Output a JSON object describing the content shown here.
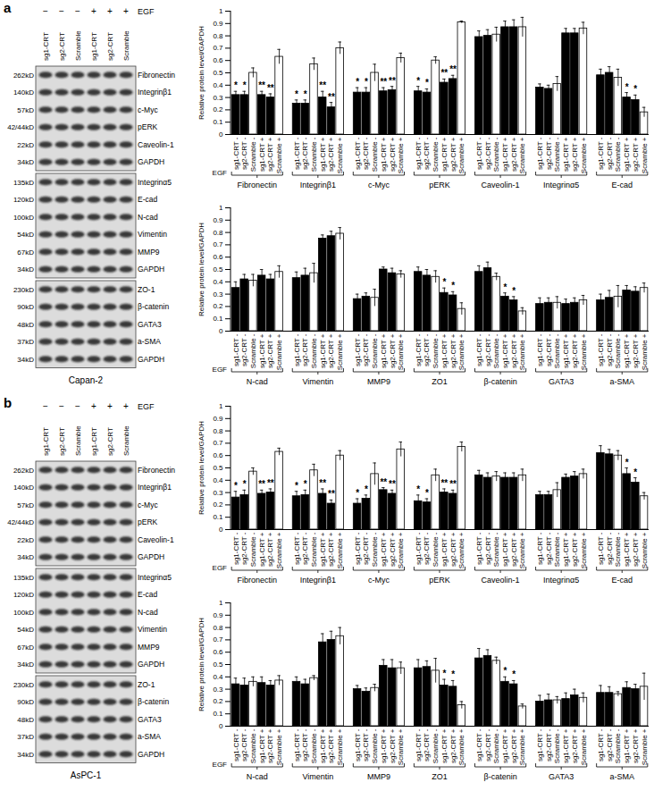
{
  "blots": [
    {
      "panel": "a",
      "cell_line": "Capan-2",
      "treatment": "EGF",
      "lanes": [
        {
          "label": "sg1-CRT",
          "sign": "−"
        },
        {
          "label": "sg2-CRT",
          "sign": "−"
        },
        {
          "label": "Scramble",
          "sign": "−"
        },
        {
          "label": "sg1-CRT",
          "sign": "+"
        },
        {
          "label": "sg2-CRT",
          "sign": "+"
        },
        {
          "label": "Scramble",
          "sign": "+"
        }
      ],
      "rows": [
        {
          "size": "262kD",
          "protein": "Fibronectin"
        },
        {
          "size": "140kD",
          "protein": "Integrinβ1"
        },
        {
          "size": "57kD",
          "protein": "c-Myc"
        },
        {
          "size": "42/44kD",
          "protein": "pERK"
        },
        {
          "size": "22kD",
          "protein": "Caveolin-1"
        },
        {
          "size": "34kD",
          "protein": "GAPDH"
        },
        {
          "size": "135kD",
          "protein": "Integrinα5"
        },
        {
          "size": "120kD",
          "protein": "E-cad"
        },
        {
          "size": "100kD",
          "protein": "N-cad"
        },
        {
          "size": "54kD",
          "protein": "Vimentin"
        },
        {
          "size": "67kD",
          "protein": "MMP9"
        },
        {
          "size": "34kD",
          "protein": "GAPDH"
        },
        {
          "size": "230kD",
          "protein": "ZO-1"
        },
        {
          "size": "90kD",
          "protein": "β-catenin"
        },
        {
          "size": "48kD",
          "protein": "GATA3"
        },
        {
          "size": "37kD",
          "protein": "a-SMA"
        },
        {
          "size": "34kD",
          "protein": "GAPDH"
        }
      ]
    },
    {
      "panel": "b",
      "cell_line": "AsPC-1",
      "treatment": "EGF",
      "lanes": [
        {
          "label": "sg1-CRT",
          "sign": "−"
        },
        {
          "label": "sg2-CRT",
          "sign": "−"
        },
        {
          "label": "Scramble",
          "sign": "−"
        },
        {
          "label": "sg1-CRT",
          "sign": "+"
        },
        {
          "label": "sg2-CRT",
          "sign": "+"
        },
        {
          "label": "Scramble",
          "sign": "+"
        }
      ],
      "rows": [
        {
          "size": "262kD",
          "protein": "Fibronectin"
        },
        {
          "size": "140kD",
          "protein": "Integrinβ1"
        },
        {
          "size": "57kD",
          "protein": "c-Myc"
        },
        {
          "size": "42/44kD",
          "protein": "pERK"
        },
        {
          "size": "22kD",
          "protein": "Caveolin-1"
        },
        {
          "size": "34kD",
          "protein": "GAPDH"
        },
        {
          "size": "135kD",
          "protein": "Integrinα5"
        },
        {
          "size": "120kD",
          "protein": "E-cad"
        },
        {
          "size": "100kD",
          "protein": "N-cad"
        },
        {
          "size": "54kD",
          "protein": "Vimentin"
        },
        {
          "size": "67kD",
          "protein": "MMP9"
        },
        {
          "size": "34kD",
          "protein": "GAPDH"
        },
        {
          "size": "230kD",
          "protein": "ZO-1"
        },
        {
          "size": "90kD",
          "protein": "β-catenin"
        },
        {
          "size": "48kD",
          "protein": "GATA3"
        },
        {
          "size": "37kD",
          "protein": "a-SMA"
        },
        {
          "size": "34kD",
          "protein": "GAPDH"
        }
      ]
    }
  ],
  "chart_data": [
    {
      "type": "bar",
      "ylabel": "Relative protein level/GAPDH",
      "xlabel": "EGF",
      "categories": [
        "Fibronectin",
        "Integrinβ1",
        "c-Myc",
        "pERK",
        "Caveolin-1",
        "Integrinα5",
        "E-cad"
      ],
      "ylim": [
        0,
        1
      ],
      "yticks": [
        0,
        0.1,
        0.2,
        0.3,
        0.4,
        0.5,
        0.6,
        0.7,
        0.8,
        0.9,
        1
      ],
      "series": [
        {
          "name": "sg1-CRT -",
          "color": "#000000",
          "values": [
            0.32,
            0.25,
            0.34,
            0.35,
            0.79,
            0.38,
            0.48
          ],
          "errors": [
            0.03,
            0.03,
            0.04,
            0.04,
            0.05,
            0.03,
            0.05
          ],
          "annotations": [
            "*",
            "*",
            "*",
            "*",
            null,
            null,
            null
          ]
        },
        {
          "name": "sg2-CRT -",
          "color": "#000000",
          "values": [
            0.32,
            0.25,
            0.34,
            0.34,
            0.8,
            0.37,
            0.5
          ],
          "errors": [
            0.03,
            0.03,
            0.04,
            0.03,
            0.05,
            0.03,
            0.05
          ],
          "annotations": [
            "*",
            "*",
            "*",
            "*",
            null,
            null,
            null
          ]
        },
        {
          "name": "Scramble -",
          "color": "#ffffff",
          "values": [
            0.5,
            0.57,
            0.5,
            0.6,
            0.81,
            0.41,
            0.46
          ],
          "errors": [
            0.04,
            0.05,
            0.07,
            0.03,
            0.06,
            0.06,
            0.07
          ],
          "annotations": [
            null,
            null,
            null,
            null,
            null,
            null,
            null
          ]
        },
        {
          "name": "sg1-CRT +",
          "color": "#000000",
          "values": [
            0.32,
            0.3,
            0.35,
            0.42,
            0.87,
            0.82,
            0.3
          ],
          "errors": [
            0.03,
            0.05,
            0.03,
            0.03,
            0.05,
            0.04,
            0.04
          ],
          "annotations": [
            "**",
            "**",
            "**",
            "**",
            null,
            null,
            "*"
          ]
        },
        {
          "name": "sg2-CRT +",
          "color": "#000000",
          "values": [
            0.3,
            0.22,
            0.36,
            0.45,
            0.87,
            0.82,
            0.28
          ],
          "errors": [
            0.03,
            0.04,
            0.03,
            0.03,
            0.06,
            0.04,
            0.04
          ],
          "annotations": [
            "**",
            "**",
            "**",
            "**",
            null,
            null,
            "*"
          ]
        },
        {
          "name": "Scramble +",
          "color": "#ffffff",
          "values": [
            0.63,
            0.7,
            0.62,
            0.91,
            0.87,
            0.86,
            0.18
          ],
          "errors": [
            0.06,
            0.05,
            0.04,
            0.01,
            0.08,
            0.05,
            0.04
          ],
          "annotations": [
            null,
            null,
            null,
            null,
            null,
            null,
            null
          ]
        }
      ]
    },
    {
      "type": "bar",
      "ylabel": "Relative protein level/GAPDH",
      "xlabel": "EGF",
      "categories": [
        "N-cad",
        "Vimentin",
        "MMP9",
        "ZO1",
        "β-catenin",
        "GATA3",
        "a-SMA"
      ],
      "ylim": [
        0,
        1
      ],
      "yticks": [
        0,
        0.1,
        0.2,
        0.3,
        0.4,
        0.5,
        0.6,
        0.7,
        0.8,
        0.9,
        1
      ],
      "series": [
        {
          "name": "sg1-CRT -",
          "color": "#000000",
          "values": [
            0.35,
            0.43,
            0.26,
            0.48,
            0.48,
            0.22,
            0.25
          ],
          "errors": [
            0.05,
            0.05,
            0.04,
            0.04,
            0.05,
            0.05,
            0.05
          ],
          "annotations": [
            null,
            null,
            null,
            null,
            null,
            null,
            null
          ]
        },
        {
          "name": "sg2-CRT -",
          "color": "#000000",
          "values": [
            0.42,
            0.45,
            0.28,
            0.45,
            0.51,
            0.23,
            0.27
          ],
          "errors": [
            0.04,
            0.06,
            0.03,
            0.05,
            0.05,
            0.04,
            0.06
          ],
          "annotations": [
            null,
            null,
            null,
            null,
            null,
            null,
            null
          ]
        },
        {
          "name": "Scramble -",
          "color": "#ffffff",
          "values": [
            0.41,
            0.47,
            0.27,
            0.44,
            0.44,
            0.23,
            0.28
          ],
          "errors": [
            0.05,
            0.08,
            0.07,
            0.05,
            0.03,
            0.05,
            0.09
          ],
          "annotations": [
            null,
            null,
            null,
            null,
            null,
            null,
            null
          ]
        },
        {
          "name": "sg1-CRT +",
          "color": "#000000",
          "values": [
            0.45,
            0.75,
            0.5,
            0.31,
            0.28,
            0.22,
            0.33
          ],
          "errors": [
            0.05,
            0.03,
            0.02,
            0.04,
            0.03,
            0.04,
            0.04
          ],
          "annotations": [
            null,
            null,
            null,
            "*",
            "*",
            null,
            null
          ]
        },
        {
          "name": "sg2-CRT +",
          "color": "#000000",
          "values": [
            0.42,
            0.77,
            0.47,
            0.29,
            0.25,
            0.23,
            0.32
          ],
          "errors": [
            0.04,
            0.04,
            0.04,
            0.03,
            0.03,
            0.04,
            0.04
          ],
          "annotations": [
            null,
            null,
            null,
            "*",
            "*",
            null,
            null
          ]
        },
        {
          "name": "Scramble +",
          "color": "#ffffff",
          "values": [
            0.48,
            0.79,
            0.46,
            0.18,
            0.16,
            0.25,
            0.35
          ],
          "errors": [
            0.05,
            0.05,
            0.03,
            0.05,
            0.03,
            0.04,
            0.04
          ],
          "annotations": [
            null,
            null,
            null,
            null,
            null,
            null,
            null
          ]
        }
      ]
    },
    {
      "type": "bar",
      "ylabel": "Relative protein level/GAPDH",
      "xlabel": "EGF",
      "categories": [
        "Fibronectin",
        "Integrinβ1",
        "c-Myc",
        "pERK",
        "Caveolin-1",
        "Integrinα5",
        "E-cad"
      ],
      "ylim": [
        0,
        1
      ],
      "yticks": [
        0,
        0.1,
        0.2,
        0.3,
        0.4,
        0.5,
        0.6,
        0.7,
        0.8,
        0.9,
        1
      ],
      "series": [
        {
          "name": "sg1-CRT -",
          "color": "#000000",
          "values": [
            0.26,
            0.27,
            0.21,
            0.23,
            0.44,
            0.28,
            0.62
          ],
          "errors": [
            0.05,
            0.04,
            0.04,
            0.05,
            0.04,
            0.03,
            0.06
          ],
          "annotations": [
            "*",
            "*",
            "*",
            "*",
            null,
            null,
            null
          ]
        },
        {
          "name": "sg2-CRT -",
          "color": "#000000",
          "values": [
            0.28,
            0.28,
            0.25,
            0.22,
            0.42,
            0.28,
            0.61
          ],
          "errors": [
            0.04,
            0.04,
            0.03,
            0.03,
            0.04,
            0.03,
            0.04
          ],
          "annotations": [
            "*",
            "*",
            "*",
            "*",
            null,
            null,
            null
          ]
        },
        {
          "name": "Scramble -",
          "color": "#ffffff",
          "values": [
            0.47,
            0.48,
            0.45,
            0.44,
            0.43,
            0.32,
            0.6
          ],
          "errors": [
            0.03,
            0.05,
            0.09,
            0.05,
            0.04,
            0.06,
            0.04
          ],
          "annotations": [
            null,
            null,
            null,
            null,
            null,
            null,
            null
          ]
        },
        {
          "name": "sg1-CRT +",
          "color": "#000000",
          "values": [
            0.29,
            0.29,
            0.32,
            0.3,
            0.42,
            0.42,
            0.45
          ],
          "errors": [
            0.03,
            0.04,
            0.02,
            0.03,
            0.04,
            0.03,
            0.05
          ],
          "annotations": [
            "**",
            "**",
            "**",
            "**",
            null,
            null,
            "*"
          ]
        },
        {
          "name": "sg2-CRT +",
          "color": "#000000",
          "values": [
            0.3,
            0.21,
            0.29,
            0.29,
            0.42,
            0.43,
            0.38
          ],
          "errors": [
            0.03,
            0.03,
            0.03,
            0.03,
            0.04,
            0.04,
            0.04
          ],
          "annotations": [
            "**",
            "**",
            "**",
            "**",
            null,
            null,
            "*"
          ]
        },
        {
          "name": "Scramble +",
          "color": "#ffffff",
          "values": [
            0.63,
            0.6,
            0.65,
            0.67,
            0.44,
            0.45,
            0.27
          ],
          "errors": [
            0.03,
            0.04,
            0.06,
            0.04,
            0.05,
            0.04,
            0.03
          ],
          "annotations": [
            null,
            null,
            null,
            null,
            null,
            null,
            null
          ]
        }
      ]
    },
    {
      "type": "bar",
      "ylabel": "Relative protein level/GAPDH",
      "xlabel": "EGF",
      "categories": [
        "N-cad",
        "Vimentin",
        "MMP9",
        "ZO1",
        "β-catenin",
        "GATA3",
        "a-SMA"
      ],
      "ylim": [
        0,
        1
      ],
      "yticks": [
        0,
        0.1,
        0.2,
        0.3,
        0.4,
        0.5,
        0.6,
        0.7,
        0.8,
        0.9,
        1
      ],
      "series": [
        {
          "name": "sg1-CRT -",
          "color": "#000000",
          "values": [
            0.34,
            0.36,
            0.3,
            0.47,
            0.55,
            0.2,
            0.27
          ],
          "errors": [
            0.05,
            0.04,
            0.03,
            0.07,
            0.08,
            0.05,
            0.06
          ],
          "annotations": [
            null,
            null,
            null,
            null,
            null,
            null,
            null
          ]
        },
        {
          "name": "sg2-CRT -",
          "color": "#000000",
          "values": [
            0.33,
            0.34,
            0.28,
            0.48,
            0.57,
            0.21,
            0.27
          ],
          "errors": [
            0.06,
            0.04,
            0.03,
            0.05,
            0.05,
            0.05,
            0.05
          ],
          "annotations": [
            null,
            null,
            null,
            null,
            null,
            null,
            null
          ]
        },
        {
          "name": "Scramble -",
          "color": "#ffffff",
          "values": [
            0.36,
            0.39,
            0.31,
            0.45,
            0.53,
            0.21,
            0.26
          ],
          "errors": [
            0.04,
            0.02,
            0.03,
            0.1,
            0.03,
            0.03,
            0.02
          ],
          "annotations": [
            null,
            null,
            null,
            null,
            null,
            null,
            null
          ]
        },
        {
          "name": "sg1-CRT +",
          "color": "#000000",
          "values": [
            0.35,
            0.68,
            0.49,
            0.33,
            0.36,
            0.22,
            0.31
          ],
          "errors": [
            0.05,
            0.07,
            0.05,
            0.05,
            0.04,
            0.05,
            0.05
          ],
          "annotations": [
            null,
            null,
            null,
            "*",
            "*",
            null,
            null
          ]
        },
        {
          "name": "sg2-CRT +",
          "color": "#000000",
          "values": [
            0.33,
            0.7,
            0.47,
            0.32,
            0.34,
            0.25,
            0.3
          ],
          "errors": [
            0.04,
            0.07,
            0.07,
            0.05,
            0.03,
            0.05,
            0.04
          ],
          "annotations": [
            null,
            null,
            null,
            "*",
            "*",
            null,
            null
          ]
        },
        {
          "name": "Scramble +",
          "color": "#ffffff",
          "values": [
            0.37,
            0.73,
            0.47,
            0.17,
            0.16,
            0.23,
            0.32
          ],
          "errors": [
            0.04,
            0.07,
            0.05,
            0.03,
            0.02,
            0.04,
            0.11
          ],
          "annotations": [
            null,
            null,
            null,
            null,
            null,
            null,
            null
          ]
        }
      ]
    }
  ]
}
